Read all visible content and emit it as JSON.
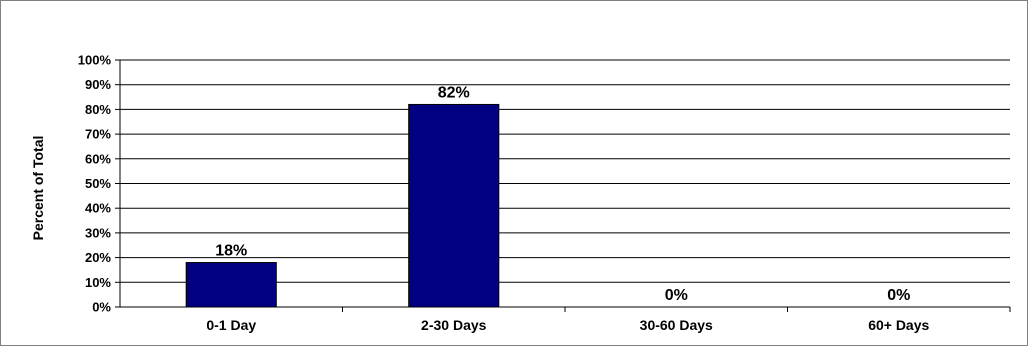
{
  "chart_data": {
    "type": "bar",
    "title": "",
    "xlabel": "",
    "ylabel": "Percent of Total",
    "categories": [
      "0-1 Day",
      "2-30 Days",
      "30-60 Days",
      "60+ Days"
    ],
    "values": [
      18,
      82,
      0,
      0
    ],
    "data_labels": [
      "18%",
      "82%",
      "0%",
      "0%"
    ],
    "ylim": [
      0,
      100
    ],
    "yticks": [
      0,
      10,
      20,
      30,
      40,
      50,
      60,
      70,
      80,
      90,
      100
    ],
    "ytick_labels": [
      "0%",
      "10%",
      "20%",
      "30%",
      "40%",
      "50%",
      "60%",
      "70%",
      "80%",
      "90%",
      "100%"
    ],
    "grid": true,
    "legend": "none",
    "bar_color": "#000080",
    "grid_color": "#000000"
  }
}
